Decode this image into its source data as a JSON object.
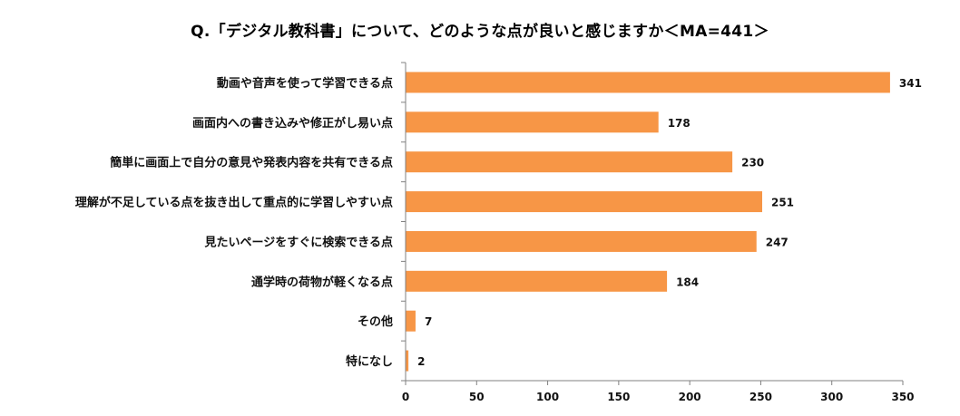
{
  "chart_data": {
    "type": "bar",
    "orientation": "horizontal",
    "title": "Q.「デジタル教科書」について、どのような点が良いと感じますか＜MA=441＞",
    "categories": [
      "動画や音声を使って学習できる点",
      "画面内への書き込みや修正がし易い点",
      "簡単に画面上で自分の意見や発表内容を共有できる点",
      "理解が不足している点を抜き出して重点的に学習しやすい点",
      "見たいページをすぐに検索できる点",
      "通学時の荷物が軽くなる点",
      "その他",
      "特になし"
    ],
    "values": [
      341,
      178,
      230,
      251,
      247,
      184,
      7,
      2
    ],
    "xlim": [
      0,
      350
    ],
    "xticks": [
      0,
      50,
      100,
      150,
      200,
      250,
      300,
      350
    ],
    "xlabel": "",
    "ylabel": "",
    "grid": false,
    "legend": "none",
    "bar_color": "#F79646"
  }
}
